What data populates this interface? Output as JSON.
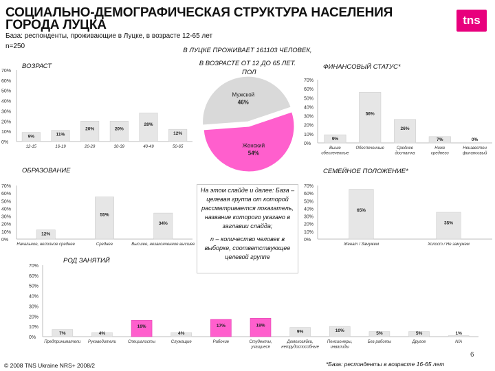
{
  "title": "СОЦИАЛЬНО-ДЕМОГРАФИЧЕСКАЯ СТРУКТУРА НАСЕЛЕНИЯ ГОРОДА ЛУЦКА",
  "subtitle": "База: респонденты, проживающие в Луцке, в возрасте 12-65 лет",
  "sample": "n=250",
  "logo_text": "tns",
  "center_note_1": "В ЛУЦКЕ ПРОЖИВАЕТ 161103 ЧЕЛОВЕК,",
  "center_note_2": "В ВОЗРАСТЕ ОТ 12 ДО 65 ЛЕТ.",
  "note_box_1": "На этом слайде и далее: База – целевая группа от которой рассматривается показатель, название которого указано в заглавии слайда;",
  "note_box_2": "n – количество человек в выборке, соответствующее целевой группе",
  "footer_left": "© 2008 TNS Ukraine NRS+ 2008/2",
  "footer_right": "*База: респонденты в возрасте 16-65 лет",
  "page_number": "6",
  "colors": {
    "bar": "#e8e8e8",
    "accent": "#e8007d",
    "pink": "#ff66cc",
    "pie_male": "#d9d9d9"
  },
  "chart_data": [
    {
      "id": "age",
      "type": "bar",
      "title": "ВОЗРАСТ",
      "categories": [
        "12-15",
        "16-19",
        "20-29",
        "30-39",
        "40-49",
        "50-65"
      ],
      "values": [
        9,
        11,
        20,
        20,
        28,
        12
      ],
      "value_labels": [
        "9%",
        "11%",
        "20%",
        "20%",
        "28%",
        "12%"
      ],
      "y_ticks": [
        "0%",
        "10%",
        "20%",
        "30%",
        "40%",
        "50%",
        "60%",
        "70%"
      ],
      "ylim": [
        0,
        70
      ]
    },
    {
      "id": "gender",
      "type": "pie",
      "title": "ПОЛ",
      "labels": [
        "Женский",
        "Мужской"
      ],
      "values": [
        54,
        46
      ],
      "value_labels": [
        "54%",
        "46%"
      ]
    },
    {
      "id": "finance",
      "type": "bar",
      "title": "ФИНАНСОВЫЙ СТАТУС*",
      "categories": [
        "Выше обеспеченные",
        "Обеспеченные",
        "Среднее достатка",
        "Ниже среднего достатка",
        "Неизвестен финансовый статус"
      ],
      "values": [
        9,
        56,
        26,
        7,
        0
      ],
      "value_labels": [
        "9%",
        "56%",
        "26%",
        "7%",
        "0%"
      ],
      "y_ticks": [
        "0%",
        "10%",
        "20%",
        "30%",
        "40%",
        "50%",
        "60%",
        "70%"
      ],
      "ylim": [
        0,
        70
      ]
    },
    {
      "id": "education",
      "type": "bar",
      "title": "ОБРАЗОВАНИЕ",
      "categories": [
        "Начальное, неполное среднее",
        "Среднее",
        "Высшее, незаконченное высшее"
      ],
      "values": [
        12,
        55,
        34
      ],
      "value_labels": [
        "12%",
        "55%",
        "34%"
      ],
      "y_ticks": [
        "0%",
        "10%",
        "20%",
        "30%",
        "40%",
        "50%",
        "60%",
        "70%"
      ],
      "ylim": [
        0,
        70
      ]
    },
    {
      "id": "family",
      "type": "bar",
      "title": "СЕМЕЙНОЕ ПОЛОЖЕНИЕ*",
      "categories": [
        "Женат / Замужем",
        "Холост / Не замужем"
      ],
      "values": [
        65,
        35
      ],
      "value_labels": [
        "65%",
        "35%"
      ],
      "y_ticks": [
        "0%",
        "10%",
        "20%",
        "30%",
        "40%",
        "50%",
        "60%",
        "70%"
      ],
      "ylim": [
        0,
        70
      ]
    },
    {
      "id": "occupation",
      "type": "bar",
      "title": "РОД ЗАНЯТИЙ",
      "categories": [
        "Предприниматели",
        "Руководители",
        "Специалисты",
        "Служащие",
        "Рабочие",
        "Студенты, учащиеся",
        "Домохозяйки, нетрудоспособные",
        "Пенсионеры, инвалиды",
        "Без работы",
        "Другое",
        "N/A"
      ],
      "values": [
        7,
        4,
        16,
        4,
        17,
        18,
        9,
        10,
        5,
        5,
        1
      ],
      "value_labels": [
        "7%",
        "4%",
        "16%",
        "4%",
        "17%",
        "18%",
        "9%",
        "10%",
        "5%",
        "5%",
        "1%"
      ],
      "highlight": [
        false,
        false,
        true,
        false,
        true,
        true,
        false,
        false,
        false,
        false,
        false
      ],
      "y_ticks": [
        "0%",
        "10%",
        "20%",
        "30%",
        "40%",
        "50%",
        "60%",
        "70%"
      ],
      "ylim": [
        0,
        70
      ]
    }
  ]
}
